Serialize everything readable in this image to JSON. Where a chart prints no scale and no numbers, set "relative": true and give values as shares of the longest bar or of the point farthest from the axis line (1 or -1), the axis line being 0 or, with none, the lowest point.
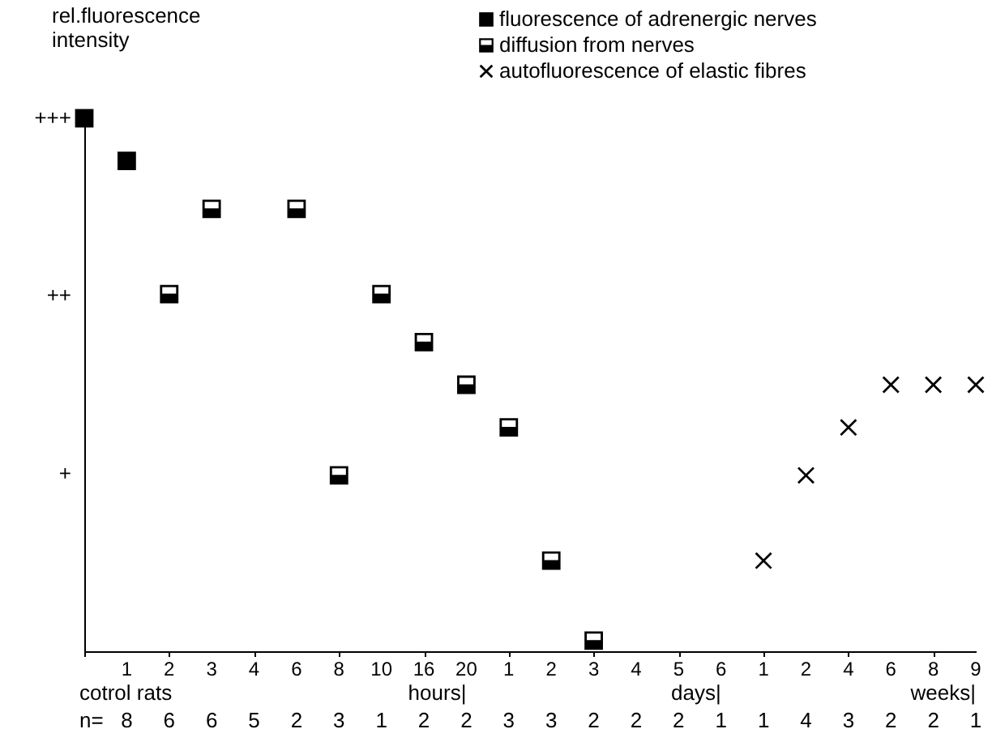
{
  "chart_data": {
    "type": "scatter",
    "ylabel": "rel.fluorescence intensity",
    "relative": true,
    "categories": [
      null,
      "1",
      "2",
      "3",
      "4",
      "6",
      "8",
      "10",
      "16",
      "20",
      "1",
      "2",
      "3",
      "4",
      "5",
      "6",
      "1",
      "2",
      "4",
      "6",
      "8",
      "9"
    ],
    "series": [
      {
        "name": "fluorescence of adrenergic nerves",
        "color": "#000000",
        "marker": "square",
        "values": [
          1,
          0.92,
          null,
          null,
          null,
          null,
          null,
          null,
          null,
          null,
          null,
          null,
          null,
          null,
          null,
          null,
          null,
          null,
          null,
          null,
          null,
          null
        ]
      },
      {
        "name": "diffusion from nerves",
        "color": "#000000",
        "marker": "square",
        "values": [
          null,
          null,
          0.67,
          0.83,
          null,
          0.83,
          0.33,
          0.67,
          0.58,
          0.5,
          0.42,
          0.17,
          0.02,
          null,
          null,
          null,
          null,
          null,
          null,
          null,
          null,
          null
        ]
      },
      {
        "name": "autofluorescence of elastic fibres",
        "color": "#000000",
        "marker": "cross",
        "values": [
          null,
          null,
          null,
          null,
          null,
          null,
          null,
          null,
          null,
          null,
          null,
          null,
          null,
          null,
          null,
          null,
          0.17,
          0.33,
          0.42,
          0.5,
          0.5,
          0.5
        ]
      }
    ],
    "grid": false,
    "legend": "top right",
    "annotations": [
      "cotrol rats",
      "hours|",
      "days|",
      "weeks|",
      "n=",
      "8",
      "6",
      "6",
      "5",
      "2",
      "3",
      "1",
      "2",
      "2",
      "3",
      "3",
      "2",
      "2",
      "2",
      "1",
      "1",
      "4",
      "3",
      "2",
      "2",
      "1",
      "+",
      "++",
      "+++"
    ]
  }
}
